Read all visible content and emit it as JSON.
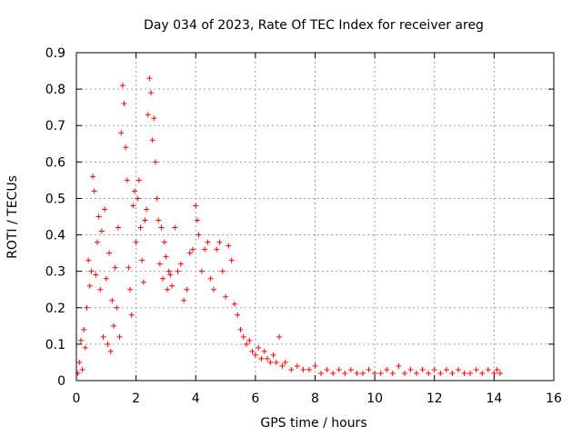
{
  "chart_data": {
    "type": "scatter",
    "title": "Day 034 of 2023, Rate Of TEC Index for receiver areg",
    "xlabel": "GPS time / hours",
    "ylabel": "ROTI / TECUs",
    "xlim": [
      0,
      16
    ],
    "ylim": [
      0,
      0.9
    ],
    "x_ticks": [
      "0",
      "2",
      "4",
      "6",
      "8",
      "10",
      "12",
      "14",
      "16"
    ],
    "y_ticks": [
      "0",
      "0.1",
      "0.2",
      "0.3",
      "0.4",
      "0.5",
      "0.6",
      "0.7",
      "0.8",
      "0.9"
    ],
    "grid": true,
    "marker": "+",
    "marker_color": "#ff0000",
    "series": [
      {
        "name": "ROTI",
        "points": [
          [
            0.05,
            0.02
          ],
          [
            0.1,
            0.05
          ],
          [
            0.15,
            0.11
          ],
          [
            0.2,
            0.03
          ],
          [
            0.25,
            0.14
          ],
          [
            0.3,
            0.09
          ],
          [
            0.35,
            0.2
          ],
          [
            0.4,
            0.33
          ],
          [
            0.45,
            0.26
          ],
          [
            0.5,
            0.3
          ],
          [
            0.55,
            0.56
          ],
          [
            0.6,
            0.52
          ],
          [
            0.65,
            0.29
          ],
          [
            0.7,
            0.38
          ],
          [
            0.75,
            0.45
          ],
          [
            0.8,
            0.25
          ],
          [
            0.85,
            0.41
          ],
          [
            0.9,
            0.12
          ],
          [
            0.95,
            0.47
          ],
          [
            1.0,
            0.28
          ],
          [
            1.05,
            0.1
          ],
          [
            1.1,
            0.35
          ],
          [
            1.15,
            0.08
          ],
          [
            1.2,
            0.22
          ],
          [
            1.25,
            0.15
          ],
          [
            1.3,
            0.31
          ],
          [
            1.35,
            0.2
          ],
          [
            1.4,
            0.42
          ],
          [
            1.45,
            0.12
          ],
          [
            1.5,
            0.68
          ],
          [
            1.55,
            0.81
          ],
          [
            1.6,
            0.76
          ],
          [
            1.65,
            0.64
          ],
          [
            1.7,
            0.55
          ],
          [
            1.75,
            0.31
          ],
          [
            1.8,
            0.25
          ],
          [
            1.85,
            0.18
          ],
          [
            1.9,
            0.48
          ],
          [
            1.95,
            0.52
          ],
          [
            2.0,
            0.38
          ],
          [
            2.05,
            0.5
          ],
          [
            2.1,
            0.55
          ],
          [
            2.15,
            0.42
          ],
          [
            2.2,
            0.33
          ],
          [
            2.25,
            0.27
          ],
          [
            2.3,
            0.44
          ],
          [
            2.35,
            0.47
          ],
          [
            2.4,
            0.73
          ],
          [
            2.45,
            0.83
          ],
          [
            2.5,
            0.79
          ],
          [
            2.55,
            0.66
          ],
          [
            2.6,
            0.72
          ],
          [
            2.65,
            0.6
          ],
          [
            2.7,
            0.5
          ],
          [
            2.75,
            0.44
          ],
          [
            2.8,
            0.32
          ],
          [
            2.85,
            0.42
          ],
          [
            2.9,
            0.28
          ],
          [
            2.95,
            0.38
          ],
          [
            3.0,
            0.34
          ],
          [
            3.05,
            0.25
          ],
          [
            3.1,
            0.3
          ],
          [
            3.15,
            0.29
          ],
          [
            3.2,
            0.26
          ],
          [
            3.3,
            0.42
          ],
          [
            3.4,
            0.3
          ],
          [
            3.5,
            0.32
          ],
          [
            3.6,
            0.22
          ],
          [
            3.7,
            0.25
          ],
          [
            3.8,
            0.35
          ],
          [
            3.9,
            0.36
          ],
          [
            4.0,
            0.48
          ],
          [
            4.05,
            0.44
          ],
          [
            4.1,
            0.4
          ],
          [
            4.2,
            0.3
          ],
          [
            4.3,
            0.36
          ],
          [
            4.4,
            0.38
          ],
          [
            4.5,
            0.28
          ],
          [
            4.6,
            0.25
          ],
          [
            4.7,
            0.36
          ],
          [
            4.8,
            0.38
          ],
          [
            4.9,
            0.3
          ],
          [
            5.0,
            0.23
          ],
          [
            5.1,
            0.37
          ],
          [
            5.2,
            0.33
          ],
          [
            5.3,
            0.21
          ],
          [
            5.4,
            0.18
          ],
          [
            5.5,
            0.14
          ],
          [
            5.6,
            0.12
          ],
          [
            5.7,
            0.1
          ],
          [
            5.8,
            0.11
          ],
          [
            5.9,
            0.08
          ],
          [
            6.0,
            0.07
          ],
          [
            6.1,
            0.09
          ],
          [
            6.2,
            0.06
          ],
          [
            6.3,
            0.08
          ],
          [
            6.4,
            0.06
          ],
          [
            6.5,
            0.05
          ],
          [
            6.6,
            0.07
          ],
          [
            6.7,
            0.05
          ],
          [
            6.8,
            0.12
          ],
          [
            6.9,
            0.04
          ],
          [
            7.0,
            0.05
          ],
          [
            7.2,
            0.03
          ],
          [
            7.4,
            0.04
          ],
          [
            7.6,
            0.03
          ],
          [
            7.8,
            0.03
          ],
          [
            8.0,
            0.04
          ],
          [
            8.2,
            0.02
          ],
          [
            8.4,
            0.03
          ],
          [
            8.6,
            0.02
          ],
          [
            8.8,
            0.03
          ],
          [
            9.0,
            0.02
          ],
          [
            9.2,
            0.03
          ],
          [
            9.4,
            0.02
          ],
          [
            9.6,
            0.02
          ],
          [
            9.8,
            0.03
          ],
          [
            10.0,
            0.02
          ],
          [
            10.2,
            0.02
          ],
          [
            10.4,
            0.03
          ],
          [
            10.6,
            0.02
          ],
          [
            10.8,
            0.04
          ],
          [
            11.0,
            0.02
          ],
          [
            11.2,
            0.03
          ],
          [
            11.4,
            0.02
          ],
          [
            11.6,
            0.03
          ],
          [
            11.8,
            0.02
          ],
          [
            12.0,
            0.03
          ],
          [
            12.2,
            0.02
          ],
          [
            12.4,
            0.03
          ],
          [
            12.6,
            0.02
          ],
          [
            12.8,
            0.03
          ],
          [
            13.0,
            0.02
          ],
          [
            13.2,
            0.02
          ],
          [
            13.4,
            0.03
          ],
          [
            13.6,
            0.02
          ],
          [
            13.8,
            0.03
          ],
          [
            14.0,
            0.02
          ],
          [
            14.1,
            0.03
          ],
          [
            14.2,
            0.02
          ]
        ]
      }
    ]
  }
}
